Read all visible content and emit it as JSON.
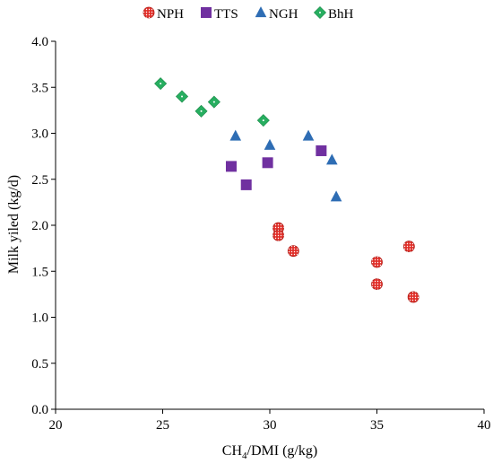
{
  "chart_data": {
    "type": "scatter",
    "xlabel_main": "CH",
    "xlabel_sub": "4",
    "xlabel_rest": "/DMI (g/kg)",
    "ylabel": "Milk yiled (kg/d)",
    "xlim": [
      20,
      40
    ],
    "ylim": [
      0,
      4
    ],
    "x_ticks": [
      "20",
      "25",
      "30",
      "35",
      "40"
    ],
    "y_ticks": [
      "0.0",
      "0.5",
      "1.0",
      "1.5",
      "2.0",
      "2.5",
      "3.0",
      "3.5",
      "4.0"
    ],
    "grid": false,
    "legend_position": "top",
    "series": [
      {
        "name": "NPH",
        "marker": "circle",
        "color": "#e0302a",
        "points": [
          {
            "x": 30.4,
            "y": 1.97
          },
          {
            "x": 30.4,
            "y": 1.89
          },
          {
            "x": 31.1,
            "y": 1.72
          },
          {
            "x": 35.0,
            "y": 1.6
          },
          {
            "x": 35.0,
            "y": 1.36
          },
          {
            "x": 36.5,
            "y": 1.77
          },
          {
            "x": 36.7,
            "y": 1.22
          }
        ]
      },
      {
        "name": "TTS",
        "marker": "square",
        "color": "#7030a0",
        "points": [
          {
            "x": 28.2,
            "y": 2.64
          },
          {
            "x": 28.9,
            "y": 2.44
          },
          {
            "x": 29.9,
            "y": 2.68
          },
          {
            "x": 32.4,
            "y": 2.81
          }
        ]
      },
      {
        "name": "NGH",
        "marker": "triangle",
        "color": "#2e6db4",
        "points": [
          {
            "x": 28.4,
            "y": 2.97
          },
          {
            "x": 30.0,
            "y": 2.87
          },
          {
            "x": 31.8,
            "y": 2.97
          },
          {
            "x": 32.9,
            "y": 2.71
          },
          {
            "x": 33.1,
            "y": 2.31
          }
        ]
      },
      {
        "name": "BhH",
        "marker": "diamond",
        "color": "#27ae60",
        "points": [
          {
            "x": 24.9,
            "y": 3.54
          },
          {
            "x": 25.9,
            "y": 3.4
          },
          {
            "x": 26.8,
            "y": 3.24
          },
          {
            "x": 27.4,
            "y": 3.34
          },
          {
            "x": 29.7,
            "y": 3.14
          }
        ]
      }
    ]
  }
}
